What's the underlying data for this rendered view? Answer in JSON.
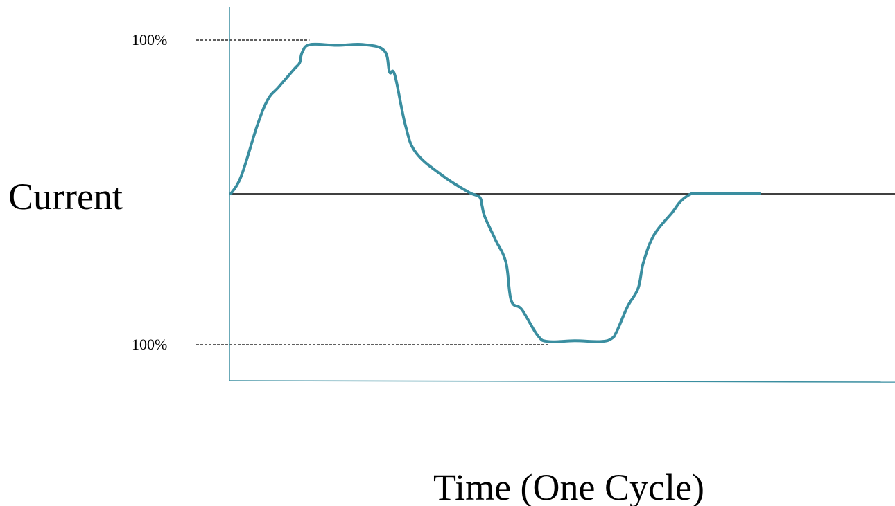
{
  "chart_data": {
    "type": "line",
    "title": "",
    "xlabel": "Time (One Cycle)",
    "ylabel": "Current",
    "xlim": [
      0,
      1
    ],
    "ylim": [
      -100,
      100
    ],
    "reference_lines": [
      {
        "y": 100,
        "label": "100%",
        "x_extent": [
          0,
          0.15
        ]
      },
      {
        "y": -100,
        "label": "100%",
        "x_extent": [
          0,
          0.6
        ]
      }
    ],
    "series": [
      {
        "color": "#3a8ea0",
        "x": [
          0,
          0.02,
          0.05,
          0.07,
          0.09,
          0.12,
          0.13,
          0.135,
          0.15,
          0.2,
          0.25,
          0.29,
          0.3,
          0.31,
          0.33,
          0.35,
          0.4,
          0.45,
          0.47,
          0.475,
          0.48,
          0.5,
          0.52,
          0.53,
          0.55,
          0.58,
          0.6,
          0.65,
          0.7,
          0.72,
          0.73,
          0.75,
          0.77,
          0.78,
          0.8,
          0.835,
          0.85,
          0.87,
          0.88,
          0.9,
          1.0
        ],
        "y": [
          0,
          12,
          45,
          62,
          70,
          82,
          86,
          93,
          98,
          97.5,
          98,
          94,
          80,
          78,
          45,
          27,
          12,
          1,
          -2,
          -8,
          -15,
          -30,
          -45,
          -70,
          -76,
          -93,
          -97,
          -96.5,
          -97,
          -95,
          -90,
          -74,
          -62,
          -45,
          -27,
          -12,
          -5,
          0,
          0,
          0,
          0
        ]
      }
    ],
    "grid": false,
    "legend": "none"
  }
}
